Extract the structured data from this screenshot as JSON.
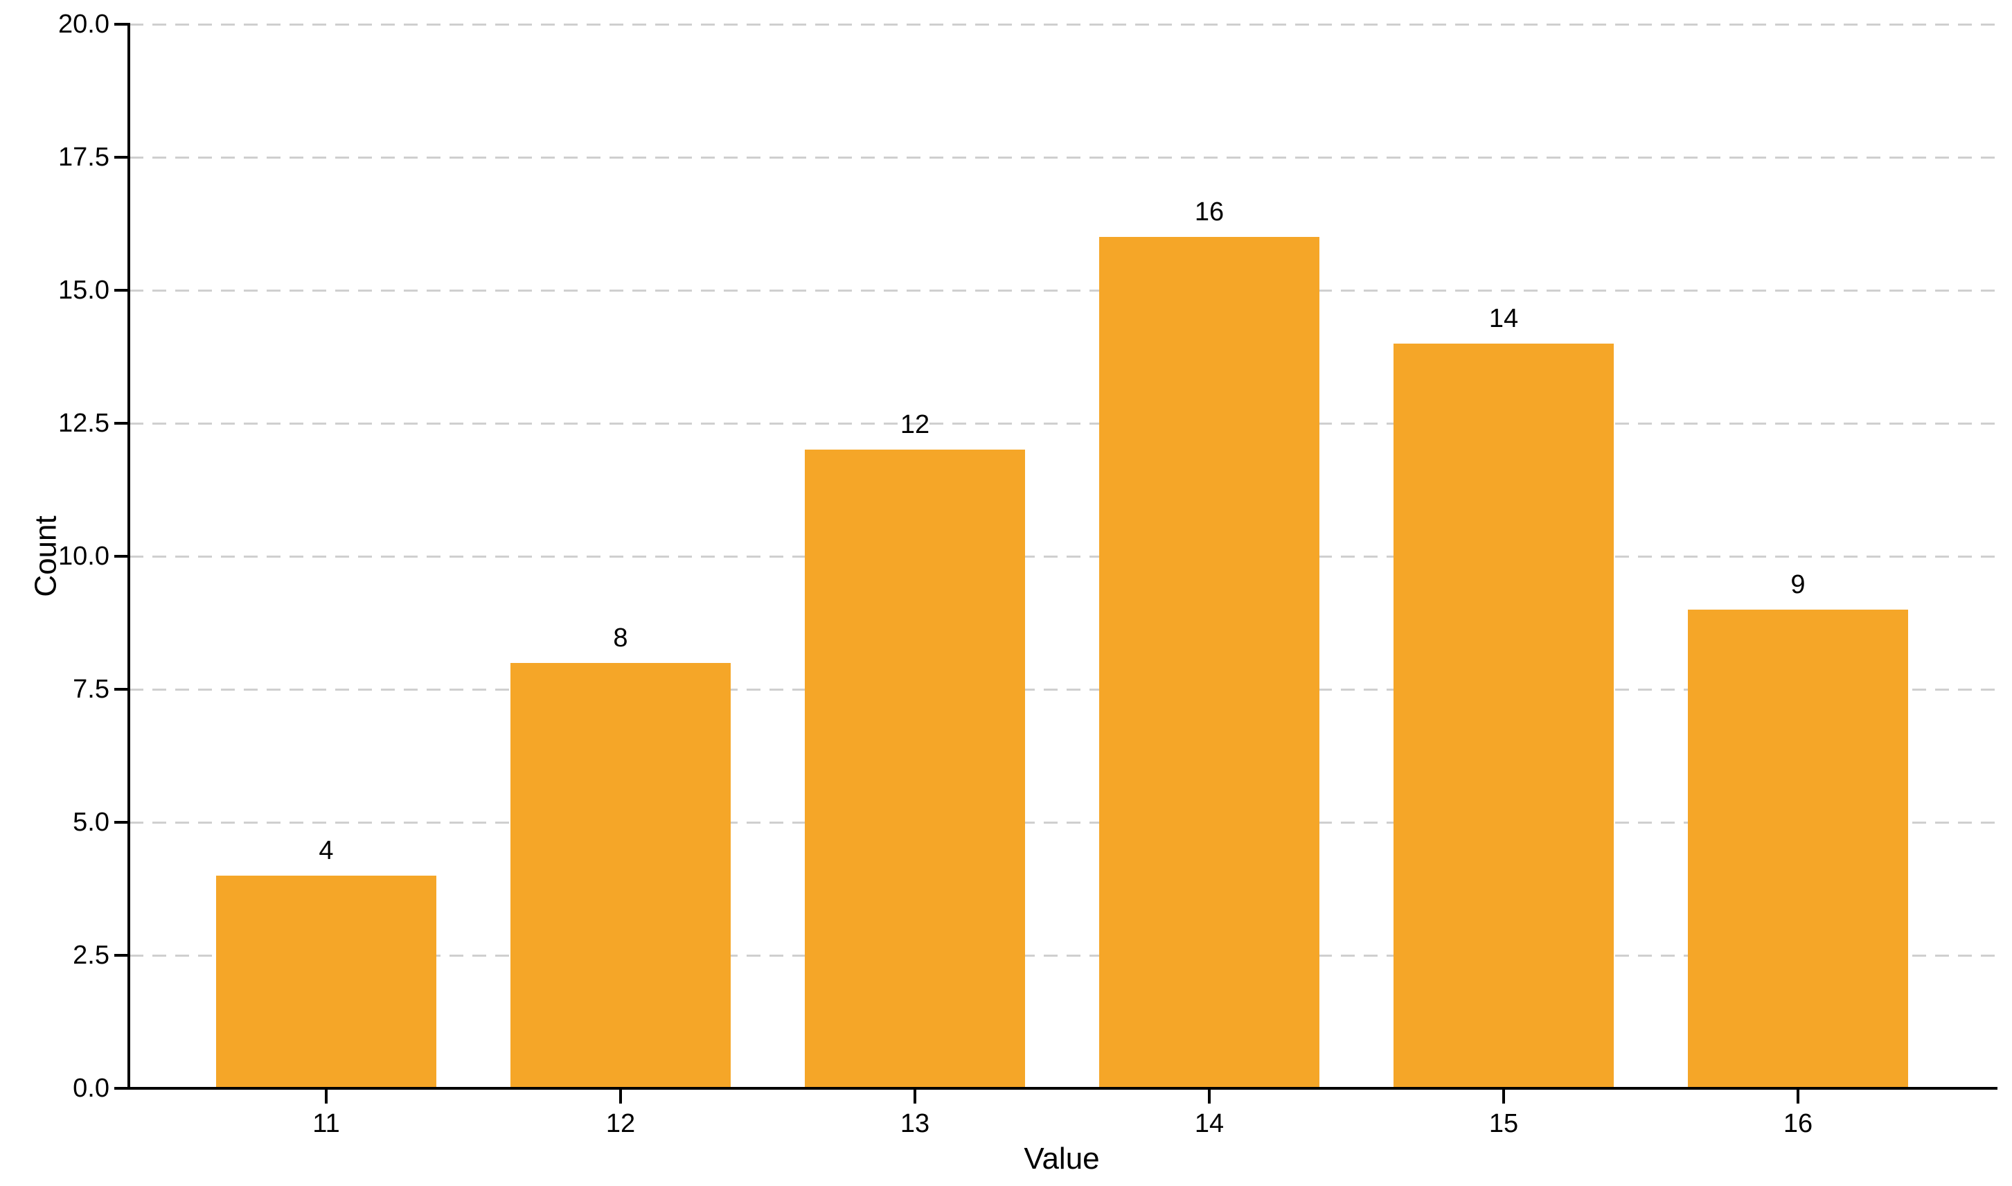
{
  "chart_data": {
    "type": "bar",
    "title": "",
    "xlabel": "Value",
    "ylabel": "Count",
    "categories": [
      "11",
      "12",
      "13",
      "14",
      "15",
      "16"
    ],
    "values": [
      4,
      8,
      12,
      16,
      14,
      9
    ],
    "bar_value_labels": [
      "4",
      "8",
      "12",
      "16",
      "14",
      "9"
    ],
    "ylim": [
      0,
      20
    ],
    "ytick_values": [
      0,
      2.5,
      5,
      7.5,
      10,
      12.5,
      15,
      17.5,
      20
    ],
    "ytick_labels": [
      "0.0",
      "2.5",
      "5.0",
      "7.5",
      "10.0",
      "12.5",
      "15.0",
      "17.5",
      "20.0"
    ],
    "legend": "none",
    "grid": "horizontal-dashed",
    "colors": {
      "bar_fill": "#F5A628",
      "gridline": "#cfcfcf",
      "axis": "#000000",
      "text": "#000000",
      "background": "#ffffff"
    }
  }
}
